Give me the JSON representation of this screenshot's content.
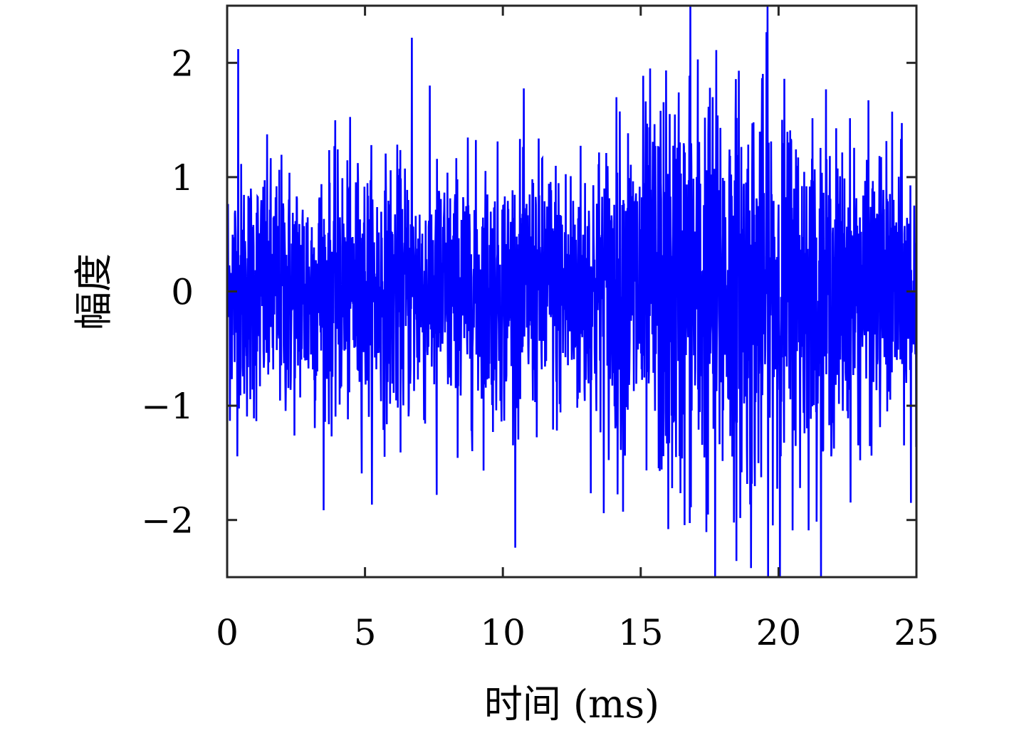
{
  "chart_data": {
    "type": "line",
    "title": "",
    "xlabel": "时间 (ms)",
    "ylabel": "幅度",
    "xlim": [
      0,
      25
    ],
    "ylim": [
      -2.5,
      2.5
    ],
    "x_ticks": [
      0,
      5,
      10,
      15,
      20,
      25
    ],
    "x_tick_labels": [
      "0",
      "5",
      "10",
      "15",
      "20",
      "25"
    ],
    "y_ticks": [
      2,
      1,
      0,
      -1,
      -2
    ],
    "y_tick_labels": [
      "2",
      "1",
      "0",
      "−1",
      "−2"
    ],
    "grid": false,
    "legend": "none",
    "series": [
      {
        "color": "#0000ff",
        "sample_interval_ms": 0.01,
        "envelope": [
          {
            "x": 0,
            "amplitude": 0.55
          },
          {
            "x": 5,
            "amplitude": 0.55
          },
          {
            "x": 10,
            "amplitude": 0.55
          },
          {
            "x": 13,
            "amplitude": 0.6
          },
          {
            "x": 15,
            "amplitude": 0.8
          },
          {
            "x": 17,
            "amplitude": 0.95
          },
          {
            "x": 20,
            "amplitude": 0.85
          },
          {
            "x": 22,
            "amplitude": 0.65
          },
          {
            "x": 25,
            "amplitude": 0.55
          }
        ],
        "peaks": [
          {
            "x": 0.4,
            "y": 2.12
          },
          {
            "x": 6.7,
            "y": 2.22
          },
          {
            "x": 7.6,
            "y": -1.78
          },
          {
            "x": 16.8,
            "y": 2.5
          },
          {
            "x": 17.7,
            "y": -2.5
          },
          {
            "x": 19.0,
            "y": -2.42
          },
          {
            "x": 19.6,
            "y": 2.5
          },
          {
            "x": 16.0,
            "y": -2.08
          },
          {
            "x": 24.8,
            "y": -1.85
          }
        ]
      }
    ]
  }
}
